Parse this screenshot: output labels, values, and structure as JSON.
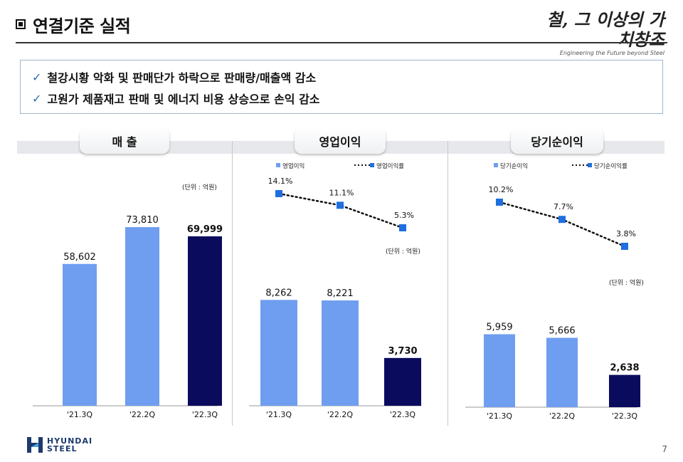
{
  "header": {
    "title": "연결기준 실적",
    "slogan_main": "철, 그 이상의 가치창조",
    "slogan_sub": "Engineering the Future beyond Steel"
  },
  "summary": [
    "철강시황 악화 및 판매단가 하락으로 판매량/매출액 감소",
    "고원가 제품재고 판매 및 에너지 비용 상승으로 손익 감소"
  ],
  "footer": {
    "logo_line1": "HYUNDAI",
    "logo_line2": "STEEL",
    "page_number": "7"
  },
  "colors": {
    "light_bar": "#6f9ef0",
    "dark_bar": "#0b0b5e",
    "marker": "#1f6fe0"
  },
  "chart_data": [
    {
      "type": "bar",
      "title": "매 출",
      "unit_label": "(단위 : 억원)",
      "categories": [
        "'21.3Q",
        "'22.2Q",
        "'22.3Q"
      ],
      "values": [
        58602,
        73810,
        69999
      ],
      "value_labels": [
        "58,602",
        "73,810",
        "69,999"
      ],
      "ylim": [
        0,
        80000
      ]
    },
    {
      "type": "bar",
      "title": "영업이익",
      "unit_label": "(단위 : 억원)",
      "legend": {
        "bar": "영업이익",
        "line": "영업이익률"
      },
      "categories": [
        "'21.3Q",
        "'22.2Q",
        "'22.3Q"
      ],
      "values": [
        8262,
        8221,
        3730
      ],
      "value_labels": [
        "8,262",
        "8,221",
        "3,730"
      ],
      "rates": [
        14.1,
        11.1,
        5.3
      ],
      "rate_labels": [
        "14.1%",
        "11.1%",
        "5.3%"
      ],
      "ylim": [
        0,
        10000
      ]
    },
    {
      "type": "bar",
      "title": "당기순이익",
      "unit_label": "(단위 : 억원)",
      "legend": {
        "bar": "당기순이익",
        "line": "당기순이익률"
      },
      "categories": [
        "'21.3Q",
        "'22.2Q",
        "'22.3Q"
      ],
      "values": [
        5959,
        5666,
        2638
      ],
      "value_labels": [
        "5,959",
        "5,666",
        "2,638"
      ],
      "rates": [
        10.2,
        7.7,
        3.8
      ],
      "rate_labels": [
        "10.2%",
        "7.7%",
        "3.8%"
      ],
      "ylim": [
        0,
        10000
      ]
    }
  ]
}
